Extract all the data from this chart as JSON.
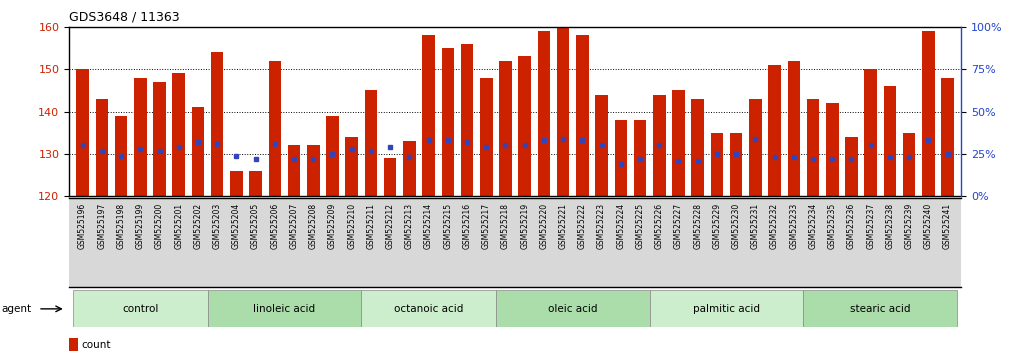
{
  "title": "GDS3648 / 11363",
  "samples": [
    "GSM525196",
    "GSM525197",
    "GSM525198",
    "GSM525199",
    "GSM525200",
    "GSM525201",
    "GSM525202",
    "GSM525203",
    "GSM525204",
    "GSM525205",
    "GSM525206",
    "GSM525207",
    "GSM525208",
    "GSM525209",
    "GSM525210",
    "GSM525211",
    "GSM525212",
    "GSM525213",
    "GSM525214",
    "GSM525215",
    "GSM525216",
    "GSM525217",
    "GSM525218",
    "GSM525219",
    "GSM525220",
    "GSM525221",
    "GSM525222",
    "GSM525223",
    "GSM525224",
    "GSM525225",
    "GSM525226",
    "GSM525227",
    "GSM525228",
    "GSM525229",
    "GSM525230",
    "GSM525231",
    "GSM525232",
    "GSM525233",
    "GSM525234",
    "GSM525235",
    "GSM525236",
    "GSM525237",
    "GSM525238",
    "GSM525239",
    "GSM525240",
    "GSM525241"
  ],
  "counts": [
    150,
    143,
    139,
    148,
    147,
    149,
    141,
    154,
    126,
    126,
    152,
    132,
    132,
    139,
    134,
    145,
    129,
    133,
    158,
    155,
    156,
    148,
    152,
    153,
    159,
    160,
    158,
    144,
    138,
    138,
    144,
    145,
    143,
    135,
    135,
    143,
    151,
    152,
    143,
    142,
    134,
    150,
    146,
    135,
    159,
    148
  ],
  "percentile_ranks": [
    30,
    27,
    24,
    28,
    27,
    29,
    32,
    31,
    24,
    22,
    31,
    22,
    22,
    25,
    28,
    27,
    29,
    23,
    33,
    33,
    32,
    29,
    30,
    30,
    33,
    34,
    33,
    30,
    19,
    22,
    30,
    21,
    21,
    25,
    25,
    34,
    23,
    23,
    22,
    22,
    22,
    30,
    23,
    23,
    33,
    25
  ],
  "groups": [
    {
      "label": "control",
      "start": 0,
      "end": 7
    },
    {
      "label": "linoleic acid",
      "start": 7,
      "end": 15
    },
    {
      "label": "octanoic acid",
      "start": 15,
      "end": 22
    },
    {
      "label": "oleic acid",
      "start": 22,
      "end": 30
    },
    {
      "label": "palmitic acid",
      "start": 30,
      "end": 38
    },
    {
      "label": "stearic acid",
      "start": 38,
      "end": 46
    }
  ],
  "ylim_left": [
    120,
    160
  ],
  "ylim_right": [
    0,
    100
  ],
  "yticks_left": [
    120,
    130,
    140,
    150,
    160
  ],
  "yticks_right": [
    0,
    25,
    50,
    75,
    100
  ],
  "bar_color": "#cc2200",
  "dot_color": "#3344bb",
  "group_colors": [
    "#cceecc",
    "#aaddaa"
  ]
}
